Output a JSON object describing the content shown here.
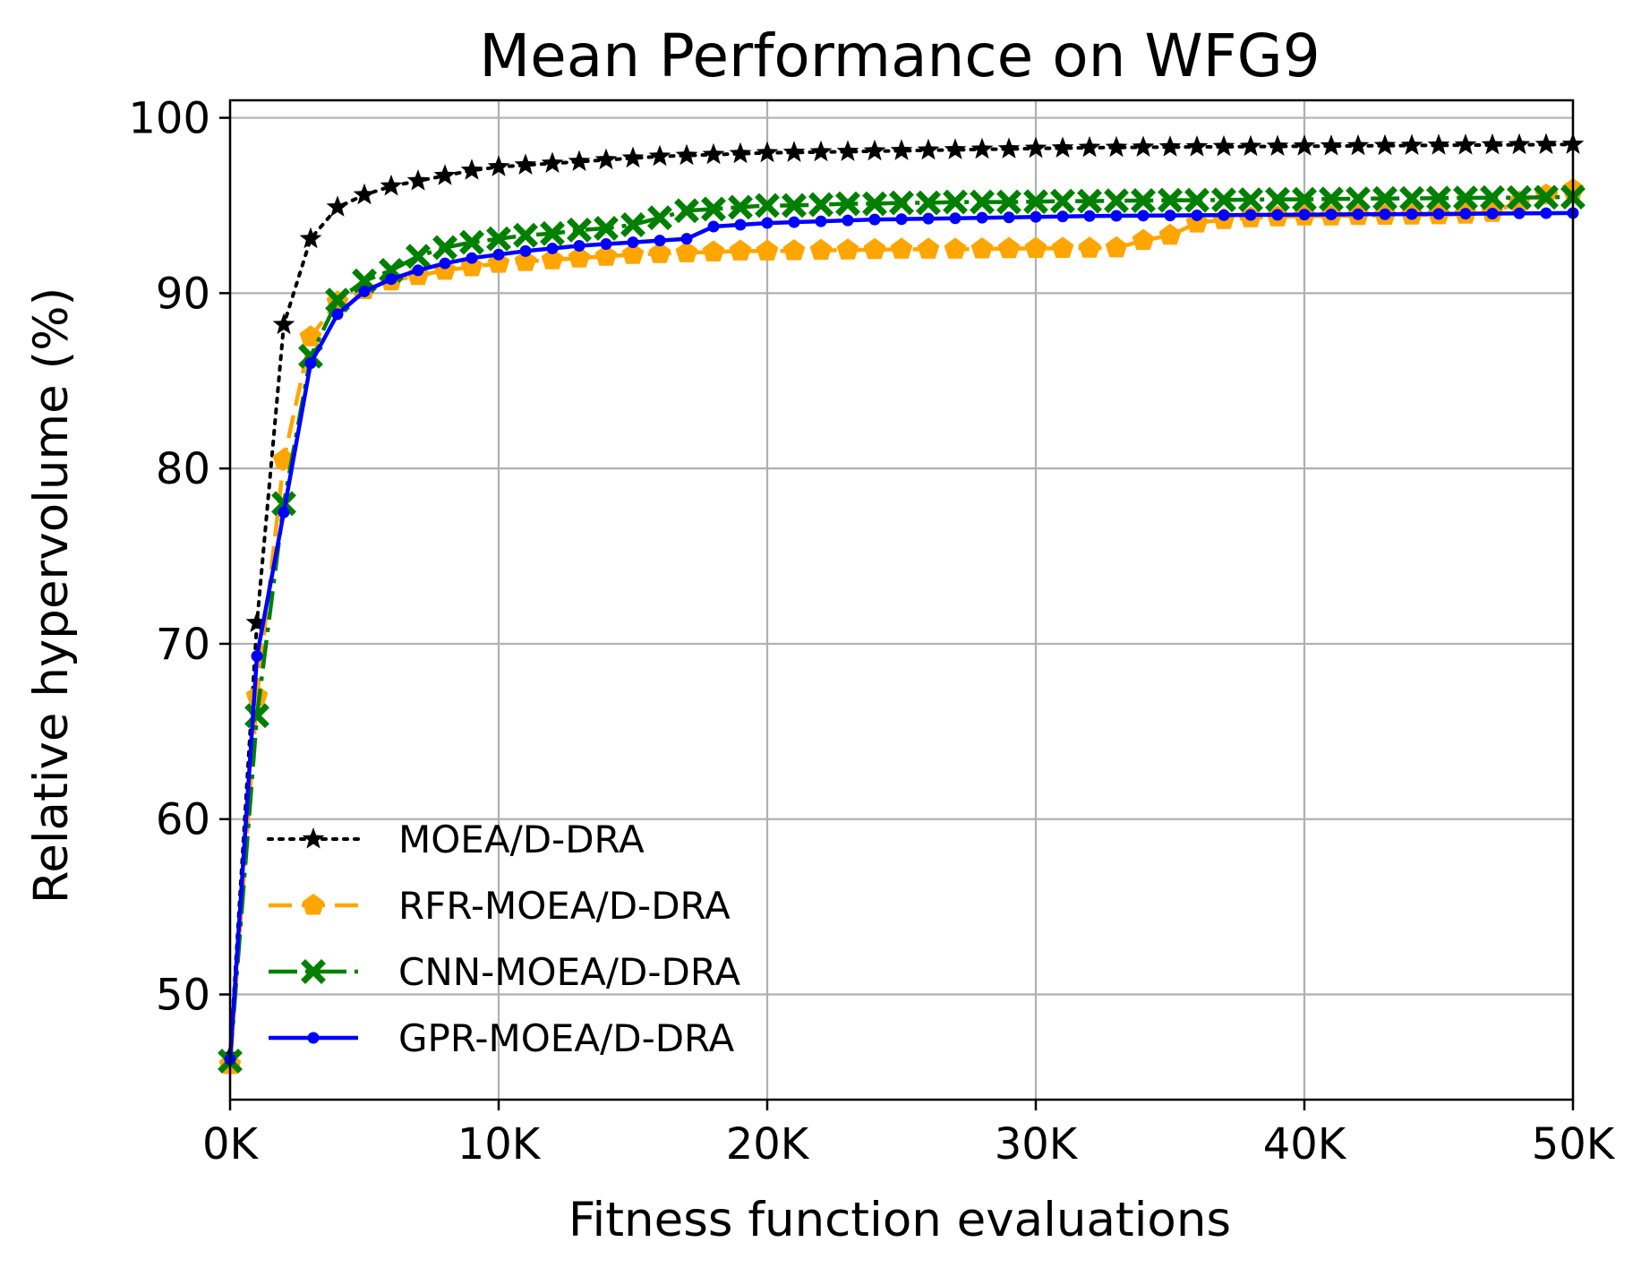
{
  "chart_data": {
    "type": "line",
    "title": "Mean Performance on WFG9",
    "xlabel": "Fitness function evaluations",
    "ylabel": "Relative hypervolume (%)",
    "xlim": [
      0,
      50000
    ],
    "ylim": [
      44,
      101
    ],
    "grid": true,
    "legend_position": "lower-left",
    "x_ticks": [
      {
        "value": 0,
        "label": "0K"
      },
      {
        "value": 10000,
        "label": "10K"
      },
      {
        "value": 20000,
        "label": "20K"
      },
      {
        "value": 30000,
        "label": "30K"
      },
      {
        "value": 40000,
        "label": "40K"
      },
      {
        "value": 50000,
        "label": "50K"
      }
    ],
    "y_ticks": [
      {
        "value": 50,
        "label": "50"
      },
      {
        "value": 60,
        "label": "60"
      },
      {
        "value": 70,
        "label": "70"
      },
      {
        "value": 80,
        "label": "80"
      },
      {
        "value": 90,
        "label": "90"
      },
      {
        "value": 100,
        "label": "100"
      }
    ],
    "x": [
      0,
      1000,
      2000,
      3000,
      4000,
      5000,
      6000,
      7000,
      8000,
      9000,
      10000,
      11000,
      12000,
      13000,
      14000,
      15000,
      16000,
      17000,
      18000,
      19000,
      20000,
      21000,
      22000,
      23000,
      24000,
      25000,
      26000,
      27000,
      28000,
      29000,
      30000,
      31000,
      32000,
      33000,
      34000,
      35000,
      36000,
      37000,
      38000,
      39000,
      40000,
      41000,
      42000,
      43000,
      44000,
      45000,
      46000,
      47000,
      48000,
      49000,
      50000
    ],
    "series": [
      {
        "name": "MOEA/D-DRA",
        "color": "#000000",
        "line_style": "dotted",
        "marker": "star",
        "values": [
          46.5,
          71.2,
          88.2,
          93.1,
          94.9,
          95.6,
          96.1,
          96.4,
          96.7,
          97.0,
          97.2,
          97.3,
          97.4,
          97.5,
          97.6,
          97.7,
          97.8,
          97.85,
          97.9,
          97.95,
          98.0,
          98.02,
          98.05,
          98.07,
          98.1,
          98.12,
          98.15,
          98.17,
          98.2,
          98.22,
          98.25,
          98.27,
          98.3,
          98.31,
          98.32,
          98.33,
          98.34,
          98.35,
          98.36,
          98.37,
          98.38,
          98.39,
          98.4,
          98.41,
          98.42,
          98.43,
          98.44,
          98.45,
          98.46,
          98.47,
          98.48
        ]
      },
      {
        "name": "RFR-MOEA/D-DRA",
        "color": "#FFA500",
        "line_style": "dashed",
        "marker": "pentagon",
        "values": [
          46.0,
          67.0,
          80.5,
          87.5,
          89.5,
          90.2,
          90.7,
          91.0,
          91.3,
          91.5,
          91.7,
          91.8,
          91.9,
          92.0,
          92.1,
          92.2,
          92.25,
          92.3,
          92.35,
          92.4,
          92.4,
          92.42,
          92.44,
          92.46,
          92.48,
          92.5,
          92.5,
          92.5,
          92.52,
          92.54,
          92.55,
          92.55,
          92.56,
          92.58,
          93.0,
          93.3,
          94.0,
          94.2,
          94.3,
          94.35,
          94.4,
          94.4,
          94.42,
          94.44,
          94.45,
          94.47,
          94.5,
          94.6,
          95.2,
          95.6,
          95.9
        ]
      },
      {
        "name": "CNN-MOEA/D-DRA",
        "color": "#008000",
        "line_style": "dashdot",
        "marker": "x",
        "values": [
          46.2,
          65.9,
          78.0,
          86.4,
          89.6,
          90.7,
          91.3,
          92.1,
          92.6,
          92.9,
          93.1,
          93.3,
          93.4,
          93.6,
          93.7,
          93.9,
          94.3,
          94.7,
          94.8,
          94.9,
          95.0,
          95.0,
          95.05,
          95.1,
          95.1,
          95.15,
          95.15,
          95.2,
          95.2,
          95.2,
          95.22,
          95.25,
          95.25,
          95.27,
          95.28,
          95.3,
          95.3,
          95.32,
          95.33,
          95.35,
          95.35,
          95.37,
          95.38,
          95.4,
          95.4,
          95.42,
          95.43,
          95.45,
          95.45,
          95.47,
          95.48
        ]
      },
      {
        "name": "GPR-MOEA/D-DRA",
        "color": "#0000FF",
        "line_style": "solid",
        "marker": "circle",
        "values": [
          46.3,
          69.3,
          77.5,
          86.0,
          88.8,
          90.1,
          90.8,
          91.3,
          91.7,
          92.0,
          92.2,
          92.4,
          92.55,
          92.7,
          92.8,
          92.9,
          93.0,
          93.1,
          93.8,
          93.9,
          94.0,
          94.05,
          94.1,
          94.15,
          94.2,
          94.22,
          94.25,
          94.27,
          94.3,
          94.32,
          94.35,
          94.37,
          94.4,
          94.41,
          94.42,
          94.43,
          94.44,
          94.45,
          94.46,
          94.47,
          94.48,
          94.49,
          94.5,
          94.5,
          94.51,
          94.52,
          94.53,
          94.54,
          94.55,
          94.56,
          94.57
        ]
      }
    ]
  }
}
